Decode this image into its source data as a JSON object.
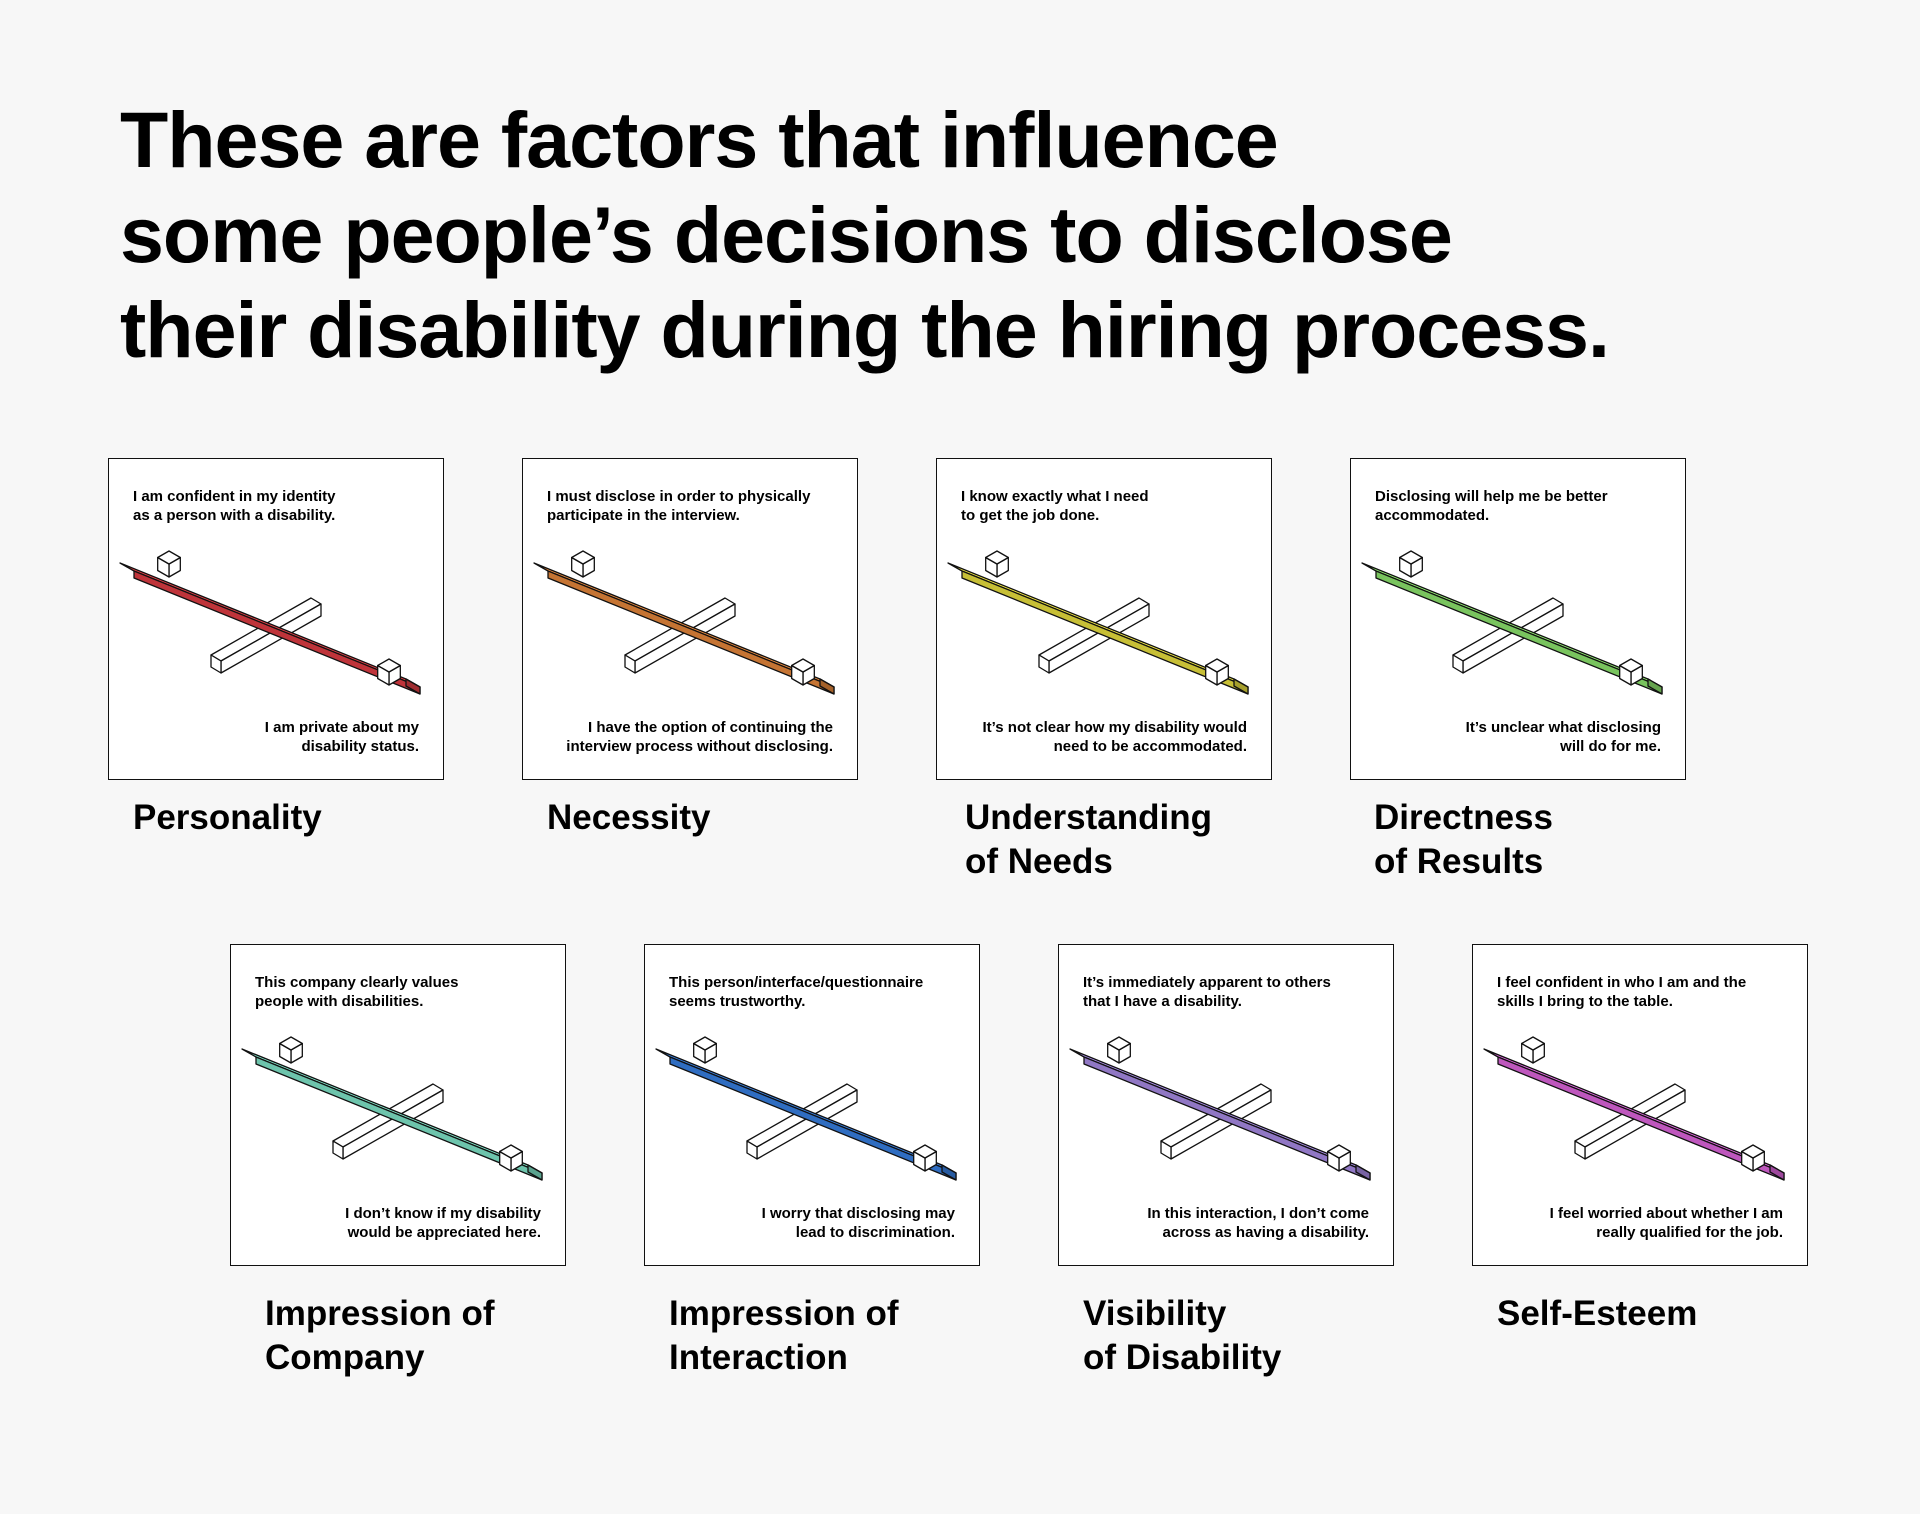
{
  "headline": {
    "lines": [
      "These are factors that influence",
      "some people’s decisions to disclose",
      "their disability during the hiring process."
    ]
  },
  "factors": [
    {
      "label_lines": [
        "Personality"
      ],
      "top_lines": [
        "I am confident in my identity",
        "as a person with a disability."
      ],
      "bottom_lines": [
        "I am private about my",
        "disability status."
      ],
      "color": "#f5434a"
    },
    {
      "label_lines": [
        "Necessity"
      ],
      "top_lines": [
        "I must disclose in order to physically",
        "participate in the interview."
      ],
      "bottom_lines": [
        "I have the option of continuing the",
        "interview process without disclosing."
      ],
      "color": "#fd9541"
    },
    {
      "label_lines": [
        "Understanding",
        "of Needs"
      ],
      "top_lines": [
        "I know exactly what I need",
        "to get the job done."
      ],
      "bottom_lines": [
        "It’s not clear how my disability would",
        "need to be accommodated."
      ],
      "color": "#fff545"
    },
    {
      "label_lines": [
        "Directness",
        "of Results"
      ],
      "top_lines": [
        "Disclosing will help me be better",
        "accommodated."
      ],
      "bottom_lines": [
        "It’s unclear what disclosing",
        "will do for me."
      ],
      "color": "#9bfb78"
    },
    {
      "label_lines": [
        "Impression of",
        "Company"
      ],
      "top_lines": [
        "This company clearly values",
        "people with disabilities."
      ],
      "bottom_lines": [
        "I don’t know if my disability",
        "would be appreciated here."
      ],
      "color": "#8cfbdc"
    },
    {
      "label_lines": [
        "Impression of",
        "Interaction"
      ],
      "top_lines": [
        "This person/interface/questionnaire",
        "seems trustworthy."
      ],
      "bottom_lines": [
        "I worry that disclosing may",
        "lead to discrimination."
      ],
      "color": "#3c8cf7"
    },
    {
      "label_lines": [
        "Visibility",
        "of Disability"
      ],
      "top_lines": [
        "It’s immediately apparent to others",
        "that I have a disability."
      ],
      "bottom_lines": [
        "In this interaction, I don’t come",
        "across as having a disability."
      ],
      "color": "#b899fb"
    },
    {
      "label_lines": [
        "Self-Esteem"
      ],
      "top_lines": [
        "I feel confident in who I am and the",
        "skills I bring to the table."
      ],
      "bottom_lines": [
        "I feel worried about whether I am",
        "really qualified for the job."
      ],
      "color": "#f36ff2"
    }
  ]
}
